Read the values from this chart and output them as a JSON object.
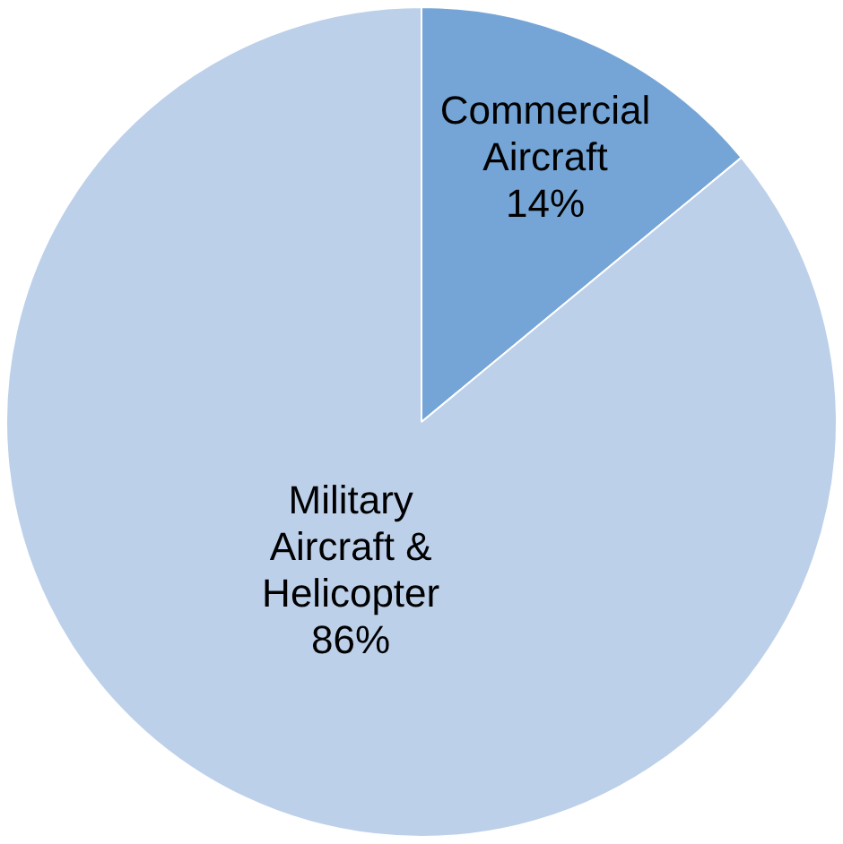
{
  "chart_data": {
    "type": "pie",
    "categories": [
      "Commercial Aircraft",
      "Military Aircraft & Helicopter"
    ],
    "values": [
      14,
      86
    ],
    "colors": [
      "#75a5d6",
      "#bcd0ea"
    ],
    "value_labels": [
      "14%",
      "86%"
    ],
    "legend": false
  }
}
